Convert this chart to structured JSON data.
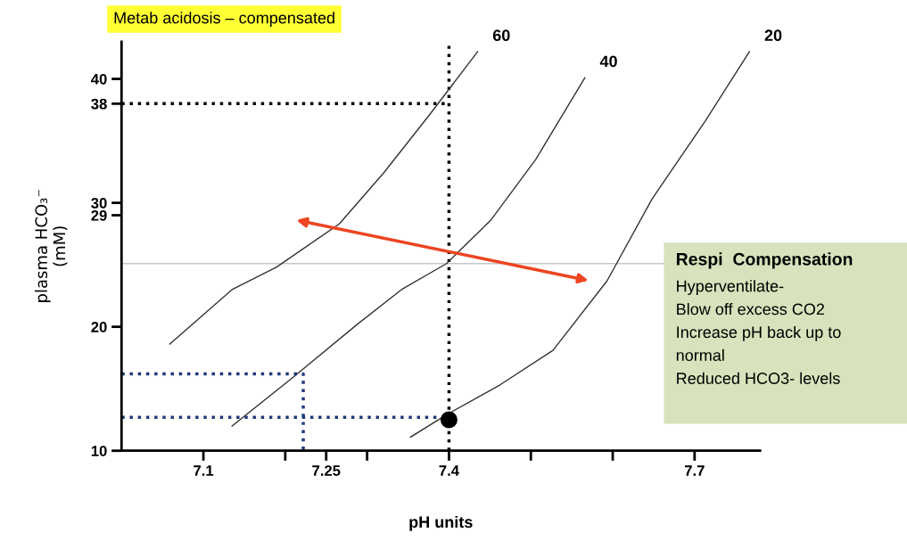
{
  "chart_data": {
    "type": "line",
    "title": "Metab acidosis – compensated",
    "xlabel": "pH units",
    "ylabel": "plasma HCO₃⁻\n(mM)",
    "xlim": [
      7.0,
      7.78
    ],
    "ylim": [
      10,
      43
    ],
    "xticks": [
      7.1,
      {
        "value": 7.2,
        "label": null
      },
      7.25,
      {
        "value": 7.3,
        "label": null
      },
      7.4,
      {
        "value": 7.5,
        "label": null
      },
      {
        "value": 7.6,
        "label": null
      },
      7.7
    ],
    "yticks": [
      10,
      20,
      29,
      30,
      38,
      40
    ],
    "grid": false,
    "legend": false,
    "marker": "none",
    "line_style": "solid",
    "series": [
      {
        "color": "#333333",
        "x": [
          7.059,
          7.135,
          7.189,
          7.266,
          7.32,
          7.375,
          7.435
        ],
        "values": [
          18.6,
          23.0,
          24.8,
          28.3,
          32.4,
          37.0,
          42.2
        ]
      },
      {
        "color": "#333333",
        "x": [
          7.135,
          7.211,
          7.288,
          7.342,
          7.397,
          7.451,
          7.506,
          7.566
        ],
        "values": [
          12.0,
          16.0,
          20.2,
          23.0,
          25.1,
          28.6,
          33.5,
          40.1
        ]
      },
      {
        "color": "#333333",
        "x": [
          7.353,
          7.397,
          7.462,
          7.527,
          7.593,
          7.648,
          7.713,
          7.767
        ],
        "values": [
          11.1,
          12.9,
          15.3,
          18.1,
          23.7,
          30.3,
          36.6,
          42.2
        ]
      },
      {
        "color": "#000000",
        "line_style": "dotted",
        "x": [
          7.0,
          7.4
        ],
        "values": [
          38,
          38
        ]
      },
      {
        "color": "#1f3a7a",
        "line_style": "dotted",
        "x": [
          7.0,
          7.222,
          7.222
        ],
        "values": [
          16.2,
          16.2,
          10
        ]
      },
      {
        "color": "#1f3a7a",
        "line_style": "dotted",
        "x": [
          7.0,
          7.4
        ],
        "values": [
          12.7,
          12.7
        ]
      },
      {
        "type": "scatter",
        "color": "#000000",
        "marker": "circle",
        "x": [
          7.4
        ],
        "values": [
          12.5
        ]
      }
    ],
    "ref_lines": [
      {
        "axis": "x",
        "value": 7.4,
        "color": "#000000",
        "line_style": "dotted"
      },
      {
        "axis": "y",
        "value": 25.1,
        "color": "#c8c8c8",
        "line_style": "solid"
      }
    ],
    "annotations": [
      "60",
      "40",
      "20",
      "Respi  Compensation",
      "Hyperventilate-",
      "Blow off excess CO2",
      "Increase pH back up to",
      "normal",
      "Reduced HCO3- levels"
    ]
  }
}
